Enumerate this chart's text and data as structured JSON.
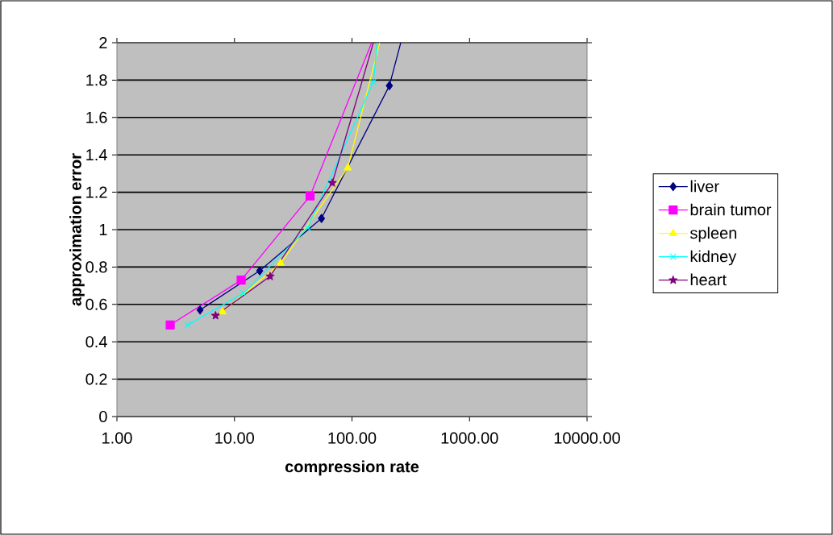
{
  "chart_data": {
    "type": "line",
    "xlabel": "compression rate",
    "ylabel": "approximation error",
    "log": "x",
    "grid": "y",
    "legend": "right",
    "xlim": [
      1,
      10000
    ],
    "xticks": [
      {
        "value": 1,
        "label": "1.00"
      },
      {
        "value": 10,
        "label": "10.00"
      },
      {
        "value": 100,
        "label": "100.00"
      },
      {
        "value": 1000,
        "label": "1000.00"
      },
      {
        "value": 10000,
        "label": "10000.00"
      }
    ],
    "ylim": [
      0,
      2
    ],
    "yticks": [
      0,
      0.2,
      0.4,
      0.6,
      0.8,
      1,
      1.2,
      1.4,
      1.6,
      1.8,
      2
    ],
    "series": [
      {
        "name": "liver",
        "color": "#000080",
        "marker": "diamond",
        "x": [
          5.1,
          16.4,
          55,
          208,
          260
        ],
        "values": [
          0.57,
          0.78,
          1.06,
          1.77,
          2
        ]
      },
      {
        "name": "brain tumor",
        "color": "#ff00ff",
        "marker": "square",
        "x": [
          2.84,
          11.4,
          44,
          147
        ],
        "values": [
          0.49,
          0.73,
          1.18,
          2
        ]
      },
      {
        "name": "spleen",
        "color": "#ffff00",
        "marker": "triangle",
        "x": [
          7.9,
          24.7,
          92,
          172
        ],
        "values": [
          0.56,
          0.82,
          1.33,
          2
        ]
      },
      {
        "name": "kidney",
        "color": "#00ffff",
        "marker": "cross",
        "x": [
          4.0,
          11.9,
          42,
          152,
          164
        ],
        "values": [
          0.49,
          0.66,
          1.01,
          1.79,
          2
        ]
      },
      {
        "name": "heart",
        "color": "#800080",
        "marker": "star",
        "x": [
          6.9,
          20.1,
          68,
          152
        ],
        "values": [
          0.54,
          0.75,
          1.25,
          2
        ]
      }
    ]
  }
}
